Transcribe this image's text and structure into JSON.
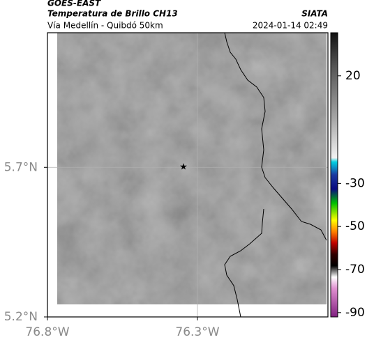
{
  "header": {
    "title": "GOES-EAST",
    "subtitle": "Temperatura de Brillo CH13",
    "route": "Vía Medellín - Quibdó 50km",
    "source": "SIATA",
    "datetime": "2024-01-14 02:49"
  },
  "map": {
    "latlim": [
      5.2,
      6.15
    ],
    "lonlim": [
      -76.8,
      -75.865
    ],
    "lat_ticks": [
      {
        "value": 5.7,
        "label": "5.7°N"
      },
      {
        "value": 5.2,
        "label": "5.2°N"
      }
    ],
    "lon_ticks": [
      {
        "value": -76.8,
        "label": "76.8°W"
      },
      {
        "value": -76.3,
        "label": "76.3°W"
      }
    ],
    "colorbar": {
      "clim": [
        -92,
        40
      ],
      "ticks": [
        20,
        -30,
        -50,
        -70,
        -90
      ]
    }
  }
}
